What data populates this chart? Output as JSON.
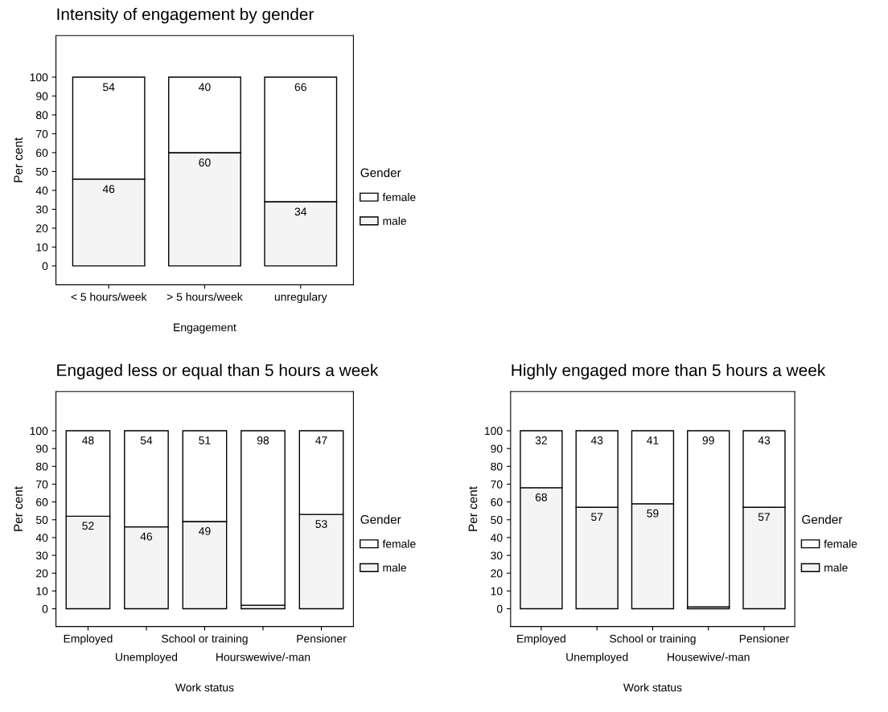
{
  "chart_data": [
    {
      "type": "bar",
      "stacked": true,
      "title": "Intensity of engagement by gender",
      "xlabel": "Engagement",
      "ylabel": "Per cent",
      "legend_title": "Gender",
      "legend": "right",
      "categories": [
        "< 5 hours/week",
        "> 5 hours/week",
        "unregulary"
      ],
      "series": [
        {
          "name": "male",
          "color": "#f4f4f4",
          "values": [
            46,
            60,
            34
          ],
          "value_labels": [
            "46",
            "60",
            "34"
          ]
        },
        {
          "name": "female",
          "color": "#ffffff",
          "values": [
            54,
            40,
            66
          ],
          "value_labels": [
            "54",
            "40",
            "66"
          ]
        }
      ],
      "ylim": [
        -10,
        122
      ],
      "yticks": [
        0,
        10,
        20,
        30,
        40,
        50,
        60,
        70,
        80,
        90,
        100
      ]
    },
    {
      "type": "bar",
      "stacked": true,
      "title": "Engaged less or equal than 5 hours a week",
      "xlabel": "Work status",
      "ylabel": "Per cent",
      "legend_title": "Gender",
      "legend": "right",
      "categories": [
        "Employed",
        "Unemployed",
        "School or training",
        "Hourswewive/-man",
        "Pensioner"
      ],
      "series": [
        {
          "name": "male",
          "color": "#f4f4f4",
          "values": [
            52,
            46,
            49,
            2,
            53
          ],
          "value_labels": [
            "52",
            "46",
            "49",
            null,
            "53"
          ]
        },
        {
          "name": "female",
          "color": "#ffffff",
          "values": [
            48,
            54,
            51,
            98,
            47
          ],
          "value_labels": [
            "48",
            "54",
            "51",
            "98",
            "47"
          ]
        }
      ],
      "ylim": [
        -10,
        122
      ],
      "yticks": [
        0,
        10,
        20,
        30,
        40,
        50,
        60,
        70,
        80,
        90,
        100
      ]
    },
    {
      "type": "bar",
      "stacked": true,
      "title": "Highly engaged more than 5 hours a week",
      "xlabel": "Work status",
      "ylabel": "Per cent",
      "legend_title": "Gender",
      "legend": "right",
      "categories": [
        "Employed",
        "Unemployed",
        "School or training",
        "Housewive/-man",
        "Pensioner"
      ],
      "series": [
        {
          "name": "male",
          "color": "#f4f4f4",
          "values": [
            68,
            57,
            59,
            1,
            57
          ],
          "value_labels": [
            "68",
            "57",
            "59",
            null,
            "57"
          ]
        },
        {
          "name": "female",
          "color": "#ffffff",
          "values": [
            32,
            43,
            41,
            99,
            43
          ],
          "value_labels": [
            "32",
            "43",
            "41",
            "99",
            "43"
          ]
        }
      ],
      "ylim": [
        -10,
        122
      ],
      "yticks": [
        0,
        10,
        20,
        30,
        40,
        50,
        60,
        70,
        80,
        90,
        100
      ]
    }
  ]
}
